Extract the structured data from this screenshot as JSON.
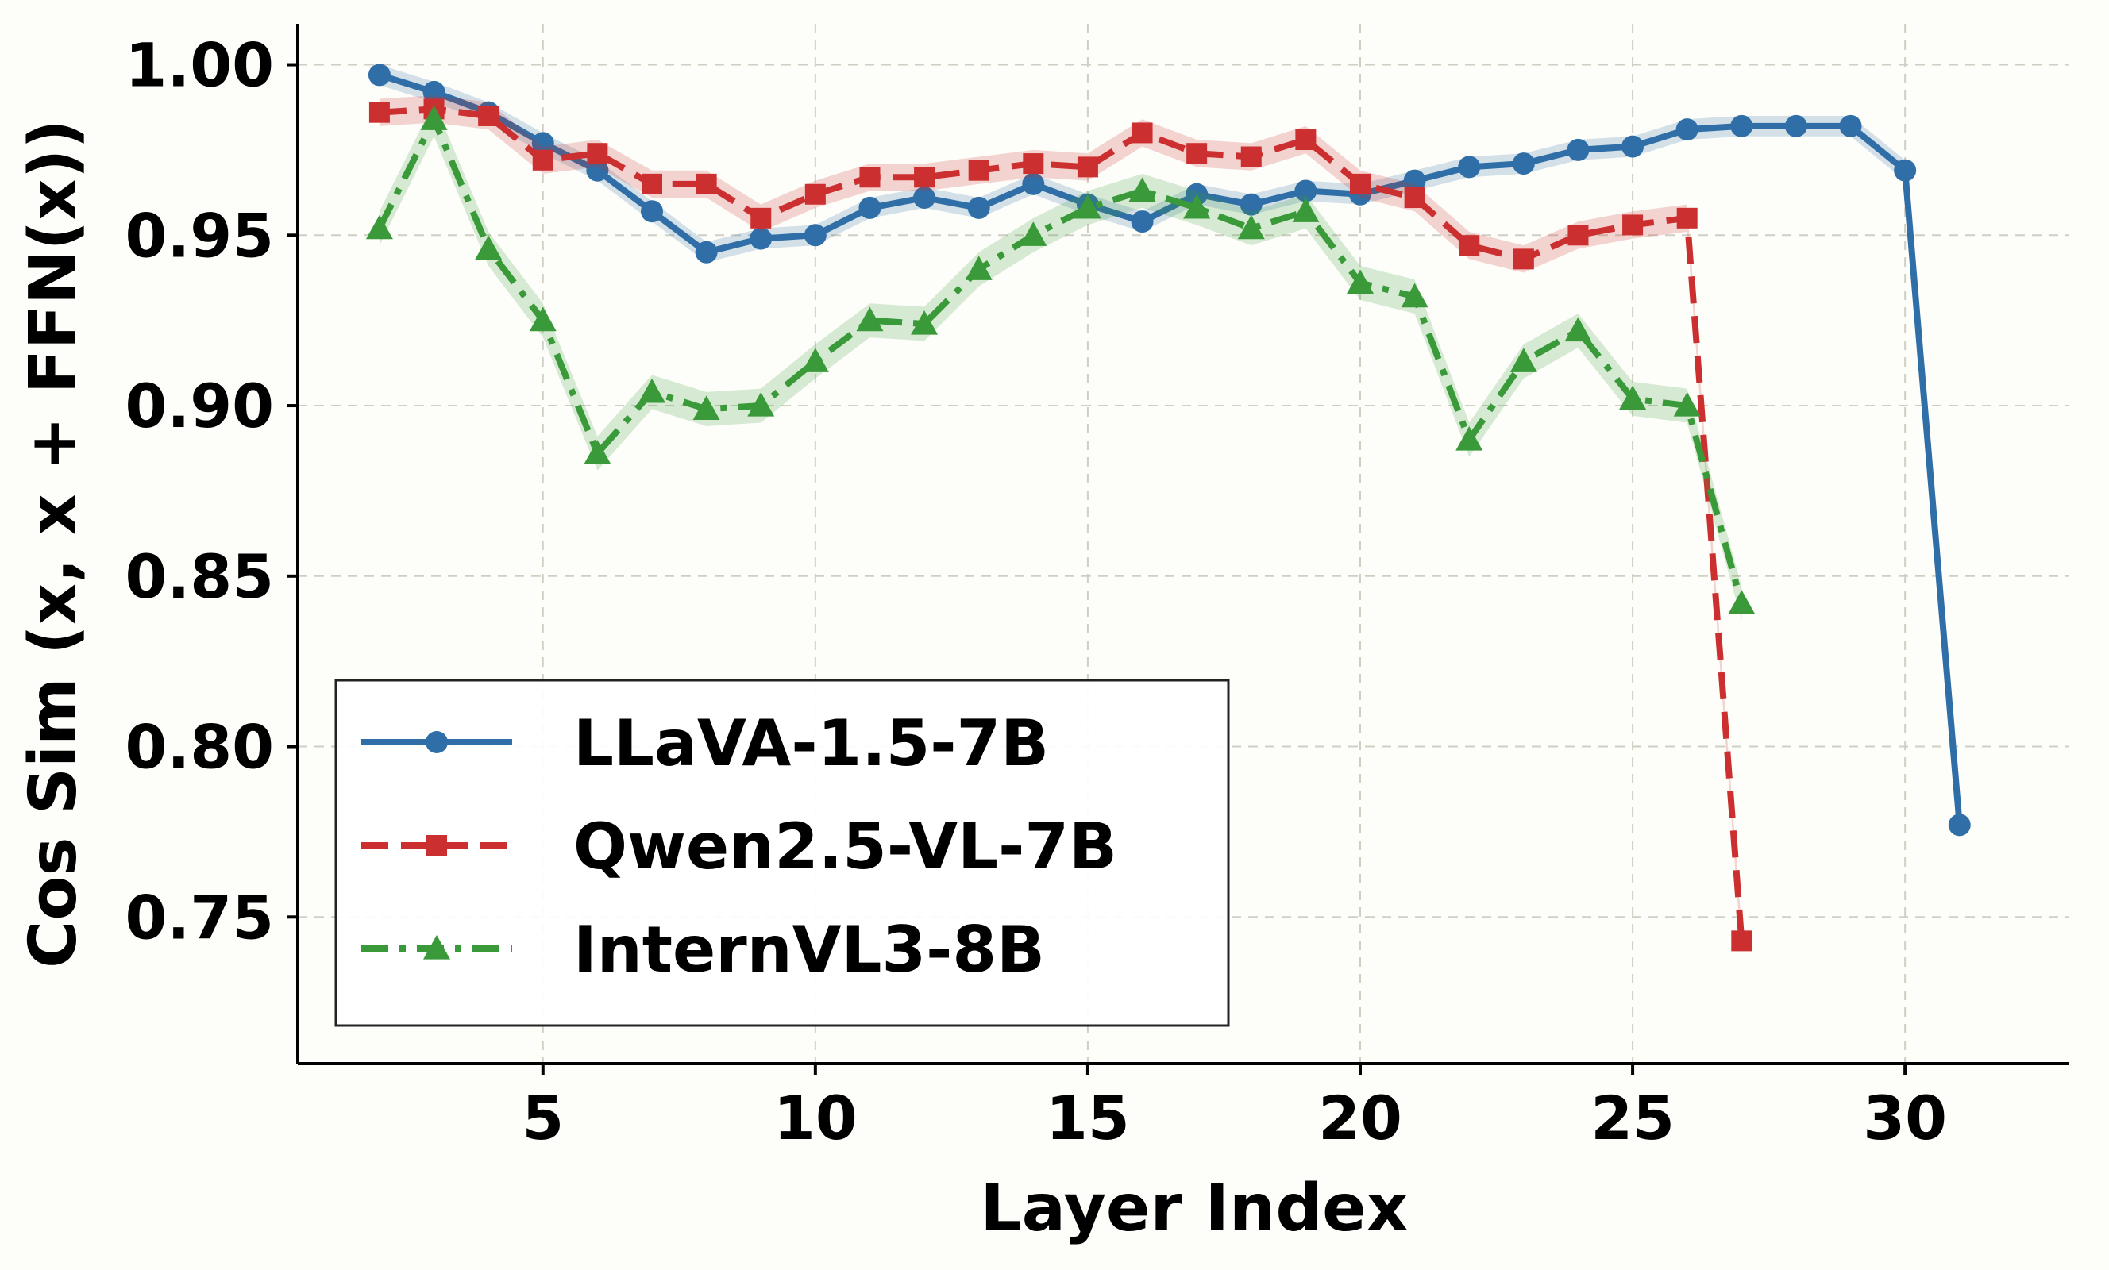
{
  "chart_data": {
    "type": "line",
    "title": "",
    "xlabel": "Layer Index",
    "ylabel": "Cos Sim (x, x + FFN(x))",
    "xlim": [
      0.5,
      33
    ],
    "ylim": [
      0.707,
      1.012
    ],
    "xticks": [
      5,
      10,
      15,
      20,
      25,
      30
    ],
    "yticks": [
      0.75,
      0.8,
      0.85,
      0.9,
      0.95,
      1.0
    ],
    "xtick_labels": [
      "5",
      "10",
      "15",
      "20",
      "25",
      "30"
    ],
    "ytick_labels": [
      "0.75",
      "0.80",
      "0.85",
      "0.90",
      "0.95",
      "1.00"
    ],
    "grid": true,
    "legend_position": "lower-left",
    "series": [
      {
        "name": "LLaVA-1.5-7B",
        "color": "#2f6ea6",
        "marker": "circle",
        "linestyle": "solid",
        "x": [
          2,
          3,
          4,
          5,
          6,
          7,
          8,
          9,
          10,
          11,
          12,
          13,
          14,
          15,
          16,
          17,
          18,
          19,
          20,
          21,
          22,
          23,
          24,
          25,
          26,
          27,
          28,
          29,
          30,
          31
        ],
        "values": [
          0.997,
          0.992,
          0.986,
          0.977,
          0.969,
          0.957,
          0.945,
          0.949,
          0.95,
          0.958,
          0.961,
          0.958,
          0.965,
          0.959,
          0.954,
          0.962,
          0.959,
          0.963,
          0.962,
          0.966,
          0.97,
          0.971,
          0.975,
          0.976,
          0.981,
          0.982,
          0.982,
          0.982,
          0.969,
          0.777
        ],
        "band": 0.003
      },
      {
        "name": "Qwen2.5-VL-7B",
        "color": "#cc2f2f",
        "marker": "square",
        "linestyle": "dashed",
        "x": [
          2,
          3,
          4,
          5,
          6,
          7,
          8,
          9,
          10,
          11,
          12,
          13,
          14,
          15,
          16,
          17,
          18,
          19,
          20,
          21,
          22,
          23,
          24,
          25,
          26,
          27
        ],
        "values": [
          0.986,
          0.987,
          0.985,
          0.972,
          0.974,
          0.965,
          0.965,
          0.955,
          0.962,
          0.967,
          0.967,
          0.969,
          0.971,
          0.97,
          0.98,
          0.974,
          0.973,
          0.978,
          0.965,
          0.961,
          0.947,
          0.943,
          0.95,
          0.953,
          0.955,
          0.743
        ],
        "band": 0.004
      },
      {
        "name": "InternVL3-8B",
        "color": "#3a9a3a",
        "marker": "triangle",
        "linestyle": "dashdot",
        "x": [
          2,
          3,
          4,
          5,
          6,
          7,
          8,
          9,
          10,
          11,
          12,
          13,
          14,
          15,
          16,
          17,
          18,
          19,
          20,
          21,
          22,
          23,
          24,
          25,
          26,
          27
        ],
        "values": [
          0.952,
          0.984,
          0.946,
          0.925,
          0.886,
          0.904,
          0.899,
          0.9,
          0.913,
          0.925,
          0.924,
          0.94,
          0.95,
          0.958,
          0.963,
          0.958,
          0.952,
          0.957,
          0.936,
          0.932,
          0.89,
          0.913,
          0.922,
          0.902,
          0.9,
          0.842
        ],
        "band": 0.005
      }
    ]
  }
}
